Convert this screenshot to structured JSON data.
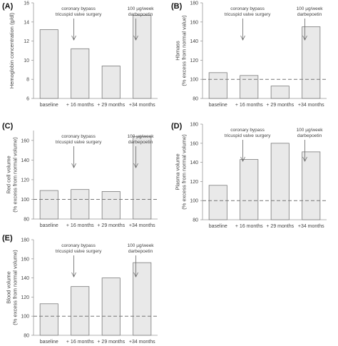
{
  "chart_data": [
    {
      "type": "bar",
      "panel": "(A)",
      "categories": [
        "baseline",
        "+ 16 months",
        "+ 29 months",
        "+34 months"
      ],
      "values": [
        13.2,
        11.2,
        9.4,
        14.7
      ],
      "ylabel": "Hemoglobin concentration (g/dl)",
      "ylim": [
        6,
        16
      ],
      "yticks": [
        6,
        8,
        10,
        12,
        14,
        16
      ],
      "reference_line": null,
      "annotations": [
        {
          "text": [
            "coronary bypass",
            "tricuspid valve surgery"
          ],
          "category": 1
        },
        {
          "text": [
            "100 µg/week",
            "darbepoetin"
          ],
          "category": 3
        }
      ]
    },
    {
      "type": "bar",
      "panel": "(B)",
      "categories": [
        "baseline",
        "+ 16 months",
        "+ 29 months",
        "+34 months"
      ],
      "values": [
        107,
        104,
        93,
        155
      ],
      "ylabel": [
        "Hbmass",
        "(% excess from normal value)"
      ],
      "ylim": [
        80,
        180
      ],
      "yticks": [
        80,
        100,
        120,
        140,
        160,
        180
      ],
      "reference_line": 100,
      "annotations": [
        {
          "text": [
            "coronary bypass",
            "tricuspid valve surgery"
          ],
          "category": 1
        },
        {
          "text": [
            "100 µg/week",
            "darbepoetin"
          ],
          "category": 3
        }
      ]
    },
    {
      "type": "bar",
      "panel": "(C)",
      "categories": [
        "baseline",
        "+ 16 months",
        "+ 29 months",
        "+34 months"
      ],
      "values": [
        109,
        110,
        108,
        164
      ],
      "ylabel": [
        "Red cell volume",
        "(% excess from normal volume)"
      ],
      "ylim": [
        80,
        170
      ],
      "yticks": [
        80,
        100,
        120,
        140,
        160
      ],
      "reference_line": 100,
      "annotations": [
        {
          "text": [
            "coronary bypass",
            "tricuspid valve surgery"
          ],
          "category": 1
        },
        {
          "text": [
            "100 µg/week",
            "darbepoetin"
          ],
          "category": 3
        }
      ]
    },
    {
      "type": "bar",
      "panel": "(D)",
      "categories": [
        "baseline",
        "+ 16 months",
        "+ 29 months",
        "+34 months"
      ],
      "values": [
        116,
        143,
        160,
        151
      ],
      "ylabel": [
        "Plasma volume",
        "(% excess from normal volume)"
      ],
      "ylim": [
        80,
        180
      ],
      "yticks": [
        80,
        100,
        120,
        140,
        160,
        180
      ],
      "reference_line": 100,
      "annotations": [
        {
          "text": [
            "coronary bypass",
            "tricuspid valve surgery"
          ],
          "category": 1
        },
        {
          "text": [
            "100 µg/week",
            "darbepoetin"
          ],
          "category": 3
        }
      ]
    },
    {
      "type": "bar",
      "panel": "(E)",
      "categories": [
        "baseline",
        "+ 16 months",
        "+ 29 months",
        "+34 months"
      ],
      "values": [
        113,
        131,
        140,
        156
      ],
      "ylabel": [
        "Blood volume",
        "(% excess from normal volume)"
      ],
      "ylim": [
        80,
        180
      ],
      "yticks": [
        80,
        100,
        120,
        140,
        160,
        180
      ],
      "reference_line": 100,
      "annotations": [
        {
          "text": [
            "coronary bypass",
            "tricuspid valve surgery"
          ],
          "category": 1
        },
        {
          "text": [
            "100 µg/week",
            "darbepoetin"
          ],
          "category": 3
        }
      ]
    }
  ],
  "colors": {
    "bar_fill": "#e9e9e9",
    "bar_stroke": "#7a7a7a",
    "axis": "#999999",
    "reference_line": "#777777",
    "text": "#444444",
    "arrow": "#666666"
  }
}
